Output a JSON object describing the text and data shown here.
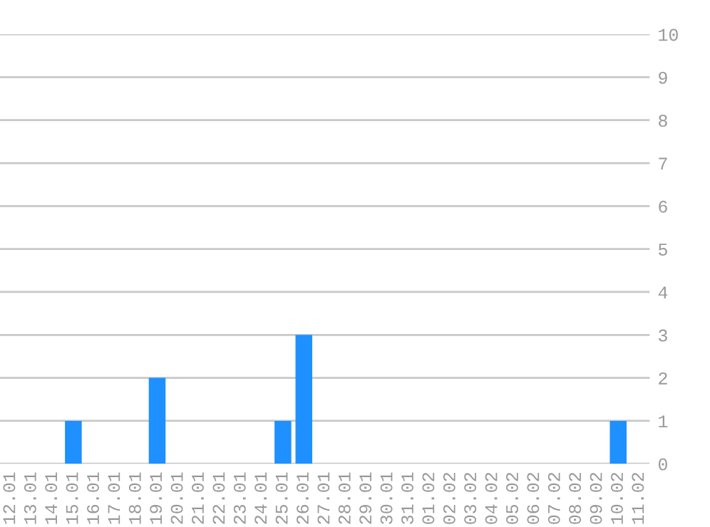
{
  "chart_data": {
    "type": "bar",
    "categories": [
      "12.01",
      "13.01",
      "14.01",
      "15.01",
      "16.01",
      "17.01",
      "18.01",
      "19.01",
      "20.01",
      "21.01",
      "22.01",
      "23.01",
      "24.01",
      "25.01",
      "26.01",
      "27.01",
      "28.01",
      "29.01",
      "30.01",
      "31.01",
      "01.02",
      "02.02",
      "03.02",
      "04.02",
      "05.02",
      "06.02",
      "07.02",
      "08.02",
      "09.02",
      "10.02",
      "11.02"
    ],
    "values": [
      0,
      0,
      0,
      1,
      0,
      0,
      0,
      2,
      0,
      0,
      0,
      0,
      0,
      1,
      3,
      0,
      0,
      0,
      0,
      0,
      0,
      0,
      0,
      0,
      0,
      0,
      0,
      0,
      0,
      1,
      0
    ],
    "color": "#1e90ff",
    "ylim": [
      0,
      10
    ],
    "yticks": [
      0,
      1,
      2,
      3,
      4,
      5,
      6,
      7,
      8,
      9,
      10
    ],
    "grid": "y",
    "legend": false
  }
}
